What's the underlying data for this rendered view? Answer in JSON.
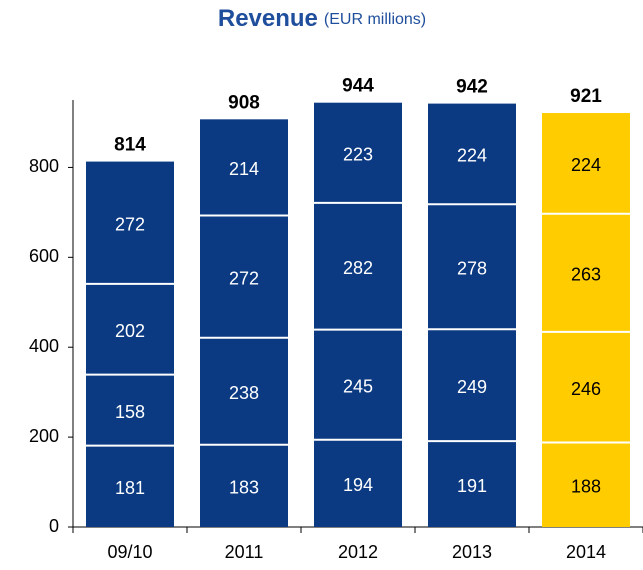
{
  "chart_data": {
    "type": "stacked_bar",
    "title": "Revenue",
    "subtitle": "(EUR millions)",
    "categories": [
      "09/10",
      "2011",
      "2012",
      "2013",
      "2014"
    ],
    "series": [
      {
        "values": [
          181,
          183,
          194,
          191,
          188
        ]
      },
      {
        "values": [
          158,
          238,
          245,
          249,
          246
        ]
      },
      {
        "values": [
          202,
          272,
          282,
          278,
          263
        ]
      },
      {
        "values": [
          272,
          214,
          223,
          224,
          224
        ]
      }
    ],
    "totals": [
      814,
      908,
      944,
      942,
      921
    ],
    "bar_colors": [
      "#0b3a82",
      "#0b3a82",
      "#0b3a82",
      "#0b3a82",
      "#ffcc00"
    ],
    "label_colors": [
      "#ffffff",
      "#ffffff",
      "#ffffff",
      "#ffffff",
      "#000000"
    ],
    "ylim": [
      0,
      950
    ],
    "yticks": [
      0,
      200,
      400,
      600,
      800
    ],
    "grid": false
  }
}
